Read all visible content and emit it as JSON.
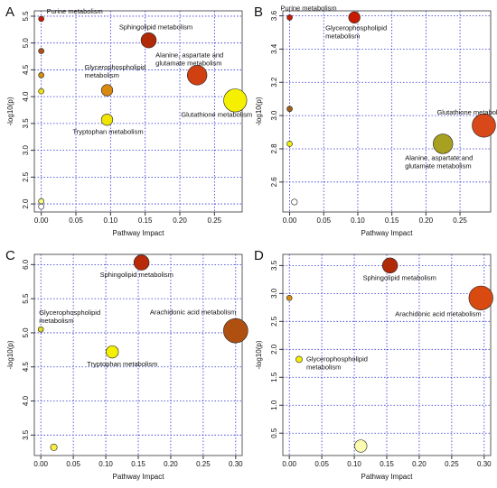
{
  "chart_data": [
    {
      "type": "scatter",
      "panel": "A",
      "xlabel": "Pathway Impact",
      "ylabel": "-log10(p)",
      "xlim": [
        -0.01,
        0.29
      ],
      "ylim": [
        1.85,
        5.6
      ],
      "xticks": [
        {
          "value": 0,
          "label": "0.00"
        },
        0.05,
        {
          "value": 0.1,
          "label": "0.10"
        },
        0.15,
        {
          "value": 0.2,
          "label": "0.20"
        },
        0.25
      ],
      "yticks": [
        {
          "value": 2,
          "label": "2.0"
        },
        2.5,
        {
          "value": 3,
          "label": "3.0"
        },
        3.5,
        {
          "value": 4,
          "label": "4.0"
        },
        4.5,
        {
          "value": 5,
          "label": "5.0"
        },
        5.5
      ],
      "x": [
        0,
        0,
        0,
        0,
        0.155,
        0.095,
        0.225,
        0.28,
        0.095,
        0,
        0
      ],
      "y": [
        5.45,
        4.85,
        4.4,
        4.1,
        5.05,
        4.12,
        4.4,
        3.93,
        3.57,
        2.05,
        1.95
      ],
      "colors": [
        "#c81a00",
        "#b0501a",
        "#d0900a",
        "#f0e010",
        "#b02a08",
        "#d88a10",
        "#d04010",
        "#f4f000",
        "#f0e400",
        "#fafa80",
        "#ffffff"
      ],
      "labels": [
        [
          "Purine metabolism"
        ],
        null,
        null,
        null,
        [
          "Sphingolipid metabolism"
        ],
        [
          "Glycerophospholipid",
          "metabolism"
        ],
        [
          "Alanine, aspartate and",
          "glutamate metabolism"
        ],
        [
          "Glutathione metabolism"
        ],
        [
          "Tryptophan metabolism"
        ],
        null,
        null
      ]
    },
    {
      "type": "scatter",
      "panel": "B",
      "xlabel": "Pathway Impact",
      "ylabel": "-log10(p)",
      "xlim": [
        -0.01,
        0.295
      ],
      "ylim": [
        2.42,
        3.63
      ],
      "xticks": [
        {
          "value": 0,
          "label": "0.00"
        },
        0.05,
        {
          "value": 0.1,
          "label": "0.10"
        },
        0.15,
        {
          "value": 0.2,
          "label": "0.20"
        },
        0.25
      ],
      "yticks": [
        2.6,
        2.8,
        {
          "value": 3,
          "label": "3.0"
        },
        3.2,
        3.4,
        3.6
      ],
      "x": [
        0,
        0.095,
        0,
        0,
        0.285,
        0.225,
        0.007
      ],
      "y": [
        3.59,
        3.59,
        3.04,
        2.83,
        2.94,
        2.83,
        2.48
      ],
      "colors": [
        "#c81a00",
        "#c81a00",
        "#a06018",
        "#f0f000",
        "#d84818",
        "#a8a020",
        "#ffffff"
      ],
      "labels": [
        [
          "Purine metabolism"
        ],
        [
          "Glycerophospholipid",
          "metabolism"
        ],
        null,
        null,
        [
          "Glutathione metabolism"
        ],
        [
          "Alanine, aspartate and",
          "glutamate metabolism"
        ],
        null
      ]
    },
    {
      "type": "scatter",
      "panel": "C",
      "xlabel": "Pathway Impact",
      "ylabel": "-log10(p)",
      "xlim": [
        -0.01,
        0.31
      ],
      "ylim": [
        3.2,
        6.15
      ],
      "xticks": [
        {
          "value": 0,
          "label": "0.00"
        },
        0.05,
        {
          "value": 0.1,
          "label": "0.10"
        },
        0.15,
        {
          "value": 0.2,
          "label": "0.20"
        },
        0.25,
        {
          "value": 0.3,
          "label": "0.30"
        }
      ],
      "yticks": [
        3.5,
        {
          "value": 4,
          "label": "4.0"
        },
        4.5,
        {
          "value": 5,
          "label": "5.0"
        },
        5.5,
        {
          "value": 6,
          "label": "6.0"
        }
      ],
      "x": [
        0.155,
        0.3,
        0,
        0.11,
        0.02
      ],
      "y": [
        6.03,
        5.03,
        5.05,
        4.72,
        3.32
      ],
      "colors": [
        "#b82a08",
        "#b05010",
        "#e0d820",
        "#f4f000",
        "#f8f040"
      ],
      "labels": [
        [
          "Sphingolipid metabolism"
        ],
        [
          "Arachidonic acid metabolism"
        ],
        [
          "Glycerophospholipid",
          "metabolism"
        ],
        [
          "Tryptophan metabolism"
        ],
        null
      ]
    },
    {
      "type": "scatter",
      "panel": "D",
      "xlabel": "Pathway Impact",
      "ylabel": "-log10(p)",
      "xlim": [
        -0.01,
        0.31
      ],
      "ylim": [
        0.1,
        3.7
      ],
      "xticks": [
        {
          "value": 0,
          "label": "0.00"
        },
        0.05,
        {
          "value": 0.1,
          "label": "0.10"
        },
        0.15,
        {
          "value": 0.2,
          "label": "0.20"
        },
        0.25,
        {
          "value": 0.3,
          "label": "0.30"
        }
      ],
      "yticks": [
        0.5,
        {
          "value": 1,
          "label": "1.0"
        },
        1.5,
        {
          "value": 2,
          "label": "2.0"
        },
        2.5,
        {
          "value": 3,
          "label": "3.0"
        },
        3.5
      ],
      "x": [
        0.155,
        0.295,
        0,
        0.015,
        0.11
      ],
      "y": [
        3.5,
        2.92,
        2.92,
        1.82,
        0.27
      ],
      "colors": [
        "#b02a08",
        "#d84a10",
        "#d89010",
        "#f4f000",
        "#fcfcb0"
      ],
      "labels": [
        [
          "Sphingolipid metabolism"
        ],
        [
          "Arachidonic acid metabolism"
        ],
        null,
        [
          "Glycerophospholipid",
          "metabolism"
        ],
        null
      ]
    }
  ]
}
